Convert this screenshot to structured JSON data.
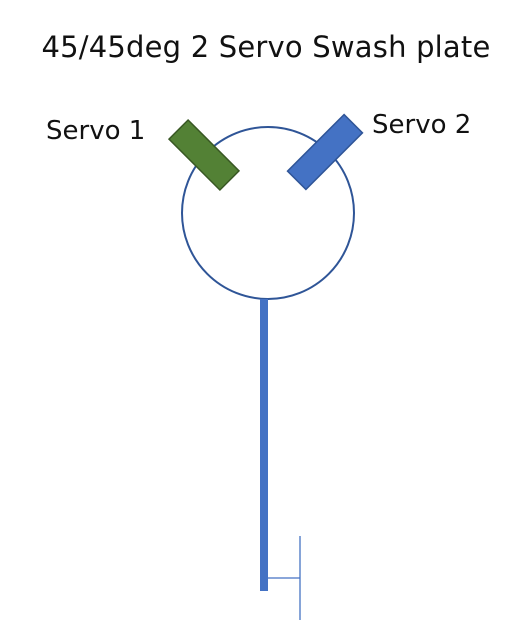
{
  "title": "45/45deg 2 Servo Swash plate",
  "servos": [
    {
      "label": "Servo 1",
      "angle_deg": 45,
      "color": "#538135"
    },
    {
      "label": "Servo 2",
      "angle_deg": -45,
      "color": "#4472C4"
    }
  ],
  "colors": {
    "swashplate_outline": "#2F5597",
    "shaft": "#4472C4",
    "servo_outline": "#2F5597",
    "text": "#111111"
  },
  "icons": {
    "swashplate": "circle-outline",
    "shaft": "vertical-bar",
    "base_marker": "t-bracket-lines"
  }
}
